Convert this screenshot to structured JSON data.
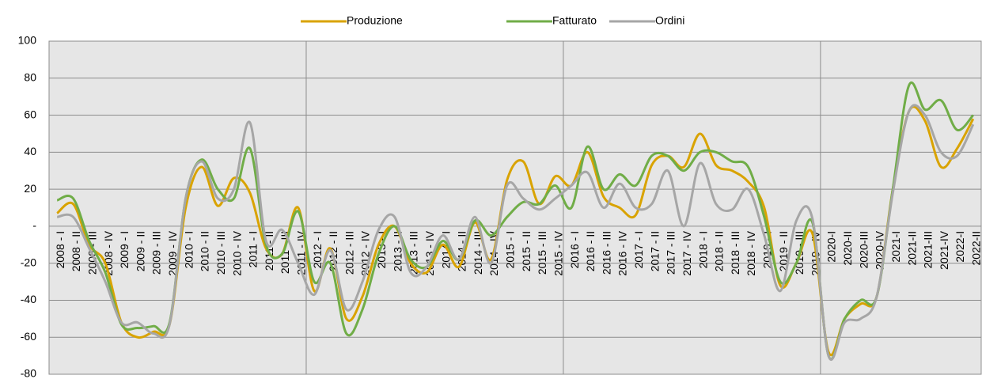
{
  "chart_data": {
    "type": "line",
    "categories": [
      "2008 - I",
      "2008 - II",
      "2008 - III",
      "2008 - IV",
      "2009 - I",
      "2009 - II",
      "2009 - III",
      "2009 - IV",
      "2010 - I",
      "2010 - II",
      "2010 - III",
      "2010 - IV",
      "2011 - I",
      "2011 - II",
      "2011 - III",
      "2011 - IV",
      "2012 - I",
      "2012 - II",
      "2012 - III",
      "2012 - IV",
      "2013 - I",
      "2013 - II",
      "2013 - III",
      "2013 - IV",
      "2014 - I",
      "2014 - II",
      "2014 - III",
      "2014 - IV",
      "2015 - I",
      "2015 - II",
      "2015 - III",
      "2015 - IV",
      "2016 - I",
      "2016 - II",
      "2016 - III",
      "2016 - IV",
      "2017 - I",
      "2017 - II",
      "2017 - III",
      "2017 - IV",
      "2018 - I",
      "2018 - II",
      "2018 - III",
      "2018 - IV",
      "2019 - I",
      "2019 - II",
      "2019 - III",
      "2019 - IV",
      "2020-I",
      "2020-II",
      "2020-III",
      "2020-IV",
      "2021-I",
      "2021-II",
      "2021-III",
      "2021-IV",
      "2022-I",
      "2022-II"
    ],
    "series": [
      {
        "name": "Produzione",
        "color": "#d9a300",
        "values": [
          7,
          12,
          -10,
          -20,
          -52,
          -60,
          -57,
          -53,
          10,
          32,
          11,
          26,
          18,
          -12,
          -15,
          10,
          -35,
          -12,
          -50,
          -38,
          -10,
          0,
          -20,
          -25,
          -10,
          -22,
          2,
          -18,
          25,
          35,
          12,
          27,
          22,
          40,
          16,
          10,
          6,
          33,
          38,
          32,
          50,
          33,
          30,
          24,
          10,
          -32,
          -20,
          -4,
          -68,
          -50,
          -42,
          -38,
          20,
          62,
          57,
          32,
          42,
          58
        ]
      },
      {
        "name": "Fatturato",
        "color": "#70ad47",
        "values": [
          14,
          15,
          -8,
          -25,
          -53,
          -55,
          -54,
          -52,
          15,
          36,
          20,
          15,
          42,
          -10,
          -15,
          8,
          -30,
          -20,
          -58,
          -45,
          -15,
          0,
          -18,
          -22,
          -8,
          -18,
          3,
          -5,
          5,
          13,
          12,
          22,
          10,
          43,
          20,
          28,
          22,
          38,
          38,
          30,
          40,
          40,
          35,
          32,
          5,
          -30,
          -20,
          2,
          -70,
          -50,
          -40,
          -38,
          20,
          76,
          63,
          68,
          52,
          60
        ]
      },
      {
        "name": "Ordini",
        "color": "#a6a6a6",
        "values": [
          5,
          5,
          -12,
          -30,
          -52,
          -52,
          -58,
          -53,
          15,
          35,
          15,
          20,
          56,
          -8,
          -2,
          -20,
          -37,
          -13,
          -45,
          -30,
          -2,
          5,
          -25,
          -22,
          -5,
          -18,
          5,
          -20,
          22,
          15,
          9,
          15,
          22,
          29,
          10,
          23,
          10,
          12,
          30,
          0,
          34,
          12,
          9,
          20,
          -5,
          -35,
          3,
          4,
          -70,
          -52,
          -50,
          -38,
          18,
          62,
          60,
          40,
          38,
          55
        ]
      }
    ],
    "ylim": [
      -80,
      100
    ],
    "yticks": [
      -80,
      -60,
      -40,
      -20,
      {
        "value": 0,
        "label": "-"
      },
      20,
      40,
      60,
      80,
      100
    ],
    "grid": true,
    "legend": "top"
  }
}
